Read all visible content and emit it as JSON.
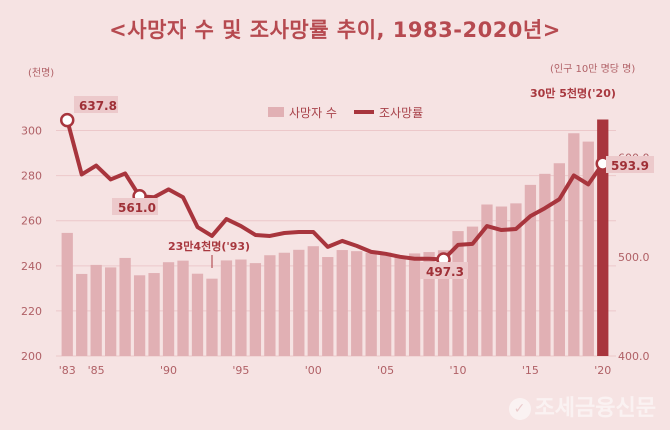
{
  "title": "<사망자 수 및 조사망률 추이, 1983-2020년>",
  "left_unit": "(천명)",
  "right_unit": "(인구 10만 명당 명)",
  "legend": {
    "bars": "사망자 수",
    "line": "조사망률"
  },
  "annotations": {
    "a1983": "637.8",
    "a1988": "561.0",
    "a2009": "497.3",
    "a2020": "593.9",
    "min1993": "23만4천명('93)",
    "max2020": "30만 5천명('20)"
  },
  "watermark": "조세금융신문",
  "colors": {
    "bar": "#e1b0b4",
    "bar_highlight": "#a8353d",
    "line": "#a8353d",
    "text": "#b64a50"
  },
  "chart_data": {
    "type": "bar",
    "title": "<사망자 수 및 조사망률 추이, 1983-2020년>",
    "ylabel": "(천명)",
    "ylabel_right": "(인구 10만 명당 명)",
    "ylim": [
      200,
      310
    ],
    "ylim_right": [
      400,
      650
    ],
    "yticks": [
      200,
      220,
      240,
      260,
      280,
      300
    ],
    "yticks_right": [
      "400.0",
      "500.0",
      "600.0"
    ],
    "x_tick_labels": [
      "'83",
      "'85",
      "'90",
      "'95",
      "'00",
      "'05",
      "'10",
      "'15",
      "'20"
    ],
    "x": [
      1983,
      1984,
      1985,
      1986,
      1987,
      1988,
      1989,
      1990,
      1991,
      1992,
      1993,
      1994,
      1995,
      1996,
      1997,
      1998,
      1999,
      2000,
      2001,
      2002,
      2003,
      2004,
      2005,
      2006,
      2007,
      2008,
      2009,
      2010,
      2011,
      2012,
      2013,
      2014,
      2015,
      2016,
      2017,
      2018,
      2019,
      2020
    ],
    "series": [
      {
        "name": "사망자 수",
        "type": "bar",
        "values": [
          254.6,
          236.4,
          240.4,
          239.3,
          243.5,
          235.8,
          236.8,
          241.6,
          242.3,
          236.5,
          234.3,
          242.4,
          242.8,
          241.2,
          244.7,
          245.8,
          247.1,
          248.7,
          243.9,
          247.0,
          246.5,
          245.8,
          245.9,
          244.2,
          245.5,
          246.1,
          246.9,
          255.4,
          257.4,
          267.2,
          266.3,
          267.7,
          275.9,
          280.8,
          285.5,
          298.8,
          295.1,
          304.9
        ]
      },
      {
        "name": "조사망률",
        "type": "line",
        "values": [
          637.8,
          583.0,
          592.0,
          578.0,
          584.0,
          561.0,
          560.0,
          568.0,
          560.0,
          530.0,
          521.0,
          538.0,
          531.0,
          522.0,
          521.0,
          524.0,
          525.0,
          525.0,
          510.0,
          516.0,
          511.0,
          505.0,
          503.0,
          500.0,
          498.0,
          498.0,
          497.3,
          512.0,
          513.0,
          531.0,
          527.0,
          528.0,
          541.0,
          549.0,
          558.0,
          582.0,
          573.0,
          593.9
        ]
      }
    ]
  }
}
